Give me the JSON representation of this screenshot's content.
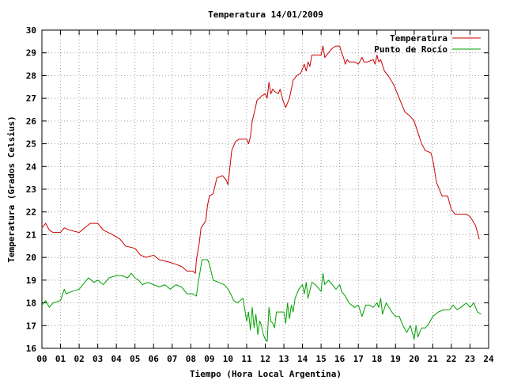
{
  "chart_data": {
    "type": "line",
    "title": "Temperatura 14/01/2009",
    "xlabel": "Tiempo (Hora Local Argentina)",
    "ylabel": "Temperatura (Grados Celsius)",
    "xlim": [
      0,
      24
    ],
    "ylim": [
      16,
      30
    ],
    "x_ticks": [
      "00",
      "01",
      "02",
      "03",
      "04",
      "05",
      "06",
      "07",
      "08",
      "09",
      "10",
      "11",
      "12",
      "13",
      "14",
      "15",
      "16",
      "17",
      "18",
      "19",
      "20",
      "21",
      "22",
      "23",
      "24"
    ],
    "y_ticks": [
      "16",
      "17",
      "18",
      "19",
      "20",
      "21",
      "22",
      "23",
      "24",
      "25",
      "26",
      "27",
      "28",
      "29",
      "30"
    ],
    "grid": true,
    "legend_position": "top-right",
    "series": [
      {
        "name": "Temperatura",
        "color": "#cc0000",
        "points": [
          [
            0.0,
            21.3
          ],
          [
            0.2,
            21.5
          ],
          [
            0.4,
            21.2
          ],
          [
            0.6,
            21.1
          ],
          [
            1.0,
            21.1
          ],
          [
            1.2,
            21.3
          ],
          [
            1.5,
            21.2
          ],
          [
            2.0,
            21.1
          ],
          [
            2.3,
            21.3
          ],
          [
            2.6,
            21.5
          ],
          [
            3.0,
            21.5
          ],
          [
            3.3,
            21.2
          ],
          [
            3.8,
            21.0
          ],
          [
            4.2,
            20.8
          ],
          [
            4.5,
            20.5
          ],
          [
            5.0,
            20.4
          ],
          [
            5.3,
            20.1
          ],
          [
            5.6,
            20.0
          ],
          [
            6.0,
            20.1
          ],
          [
            6.3,
            19.9
          ],
          [
            6.8,
            19.8
          ],
          [
            7.2,
            19.7
          ],
          [
            7.5,
            19.6
          ],
          [
            7.8,
            19.4
          ],
          [
            8.1,
            19.4
          ],
          [
            8.25,
            19.3
          ],
          [
            8.3,
            19.9
          ],
          [
            8.45,
            20.6
          ],
          [
            8.55,
            21.3
          ],
          [
            8.8,
            21.6
          ],
          [
            8.9,
            22.3
          ],
          [
            9.0,
            22.7
          ],
          [
            9.2,
            22.8
          ],
          [
            9.4,
            23.5
          ],
          [
            9.7,
            23.6
          ],
          [
            9.9,
            23.4
          ],
          [
            10.0,
            23.2
          ],
          [
            10.2,
            24.7
          ],
          [
            10.4,
            25.1
          ],
          [
            10.6,
            25.2
          ],
          [
            11.0,
            25.2
          ],
          [
            11.1,
            25.0
          ],
          [
            11.2,
            25.3
          ],
          [
            11.3,
            26.0
          ],
          [
            11.45,
            26.5
          ],
          [
            11.55,
            26.9
          ],
          [
            11.8,
            27.1
          ],
          [
            12.0,
            27.2
          ],
          [
            12.1,
            27.0
          ],
          [
            12.2,
            27.7
          ],
          [
            12.3,
            27.2
          ],
          [
            12.4,
            27.4
          ],
          [
            12.5,
            27.3
          ],
          [
            12.7,
            27.2
          ],
          [
            12.8,
            27.4
          ],
          [
            12.95,
            26.9
          ],
          [
            13.1,
            26.6
          ],
          [
            13.3,
            27.0
          ],
          [
            13.5,
            27.8
          ],
          [
            13.7,
            28.0
          ],
          [
            13.9,
            28.1
          ],
          [
            14.1,
            28.5
          ],
          [
            14.2,
            28.2
          ],
          [
            14.3,
            28.6
          ],
          [
            14.4,
            28.4
          ],
          [
            14.5,
            28.9
          ],
          [
            14.7,
            28.9
          ],
          [
            15.0,
            28.9
          ],
          [
            15.1,
            29.3
          ],
          [
            15.2,
            28.8
          ],
          [
            15.4,
            29.0
          ],
          [
            15.6,
            29.2
          ],
          [
            15.8,
            29.3
          ],
          [
            16.0,
            29.3
          ],
          [
            16.1,
            29.0
          ],
          [
            16.2,
            28.8
          ],
          [
            16.3,
            28.5
          ],
          [
            16.4,
            28.7
          ],
          [
            16.5,
            28.6
          ],
          [
            16.8,
            28.6
          ],
          [
            17.0,
            28.5
          ],
          [
            17.2,
            28.8
          ],
          [
            17.3,
            28.6
          ],
          [
            17.5,
            28.6
          ],
          [
            17.8,
            28.7
          ],
          [
            17.9,
            28.5
          ],
          [
            18.0,
            28.9
          ],
          [
            18.1,
            28.6
          ],
          [
            18.2,
            28.7
          ],
          [
            18.4,
            28.2
          ],
          [
            18.6,
            28.0
          ],
          [
            18.9,
            27.6
          ],
          [
            19.2,
            27.0
          ],
          [
            19.5,
            26.4
          ],
          [
            19.8,
            26.2
          ],
          [
            20.0,
            26.0
          ],
          [
            20.2,
            25.5
          ],
          [
            20.4,
            25.0
          ],
          [
            20.6,
            24.7
          ],
          [
            20.9,
            24.6
          ],
          [
            21.0,
            24.3
          ],
          [
            21.2,
            23.3
          ],
          [
            21.5,
            22.7
          ],
          [
            21.8,
            22.7
          ],
          [
            22.0,
            22.1
          ],
          [
            22.2,
            21.9
          ],
          [
            22.5,
            21.9
          ],
          [
            22.8,
            21.9
          ],
          [
            23.0,
            21.8
          ],
          [
            23.3,
            21.4
          ],
          [
            23.5,
            20.8
          ]
        ]
      },
      {
        "name": "Punto de Rocío",
        "color": "#00a000",
        "points": [
          [
            0.0,
            17.9
          ],
          [
            0.2,
            18.1
          ],
          [
            0.4,
            17.8
          ],
          [
            0.6,
            18.0
          ],
          [
            1.0,
            18.1
          ],
          [
            1.2,
            18.6
          ],
          [
            1.3,
            18.4
          ],
          [
            1.6,
            18.5
          ],
          [
            2.0,
            18.6
          ],
          [
            2.3,
            18.9
          ],
          [
            2.5,
            19.1
          ],
          [
            2.8,
            18.9
          ],
          [
            3.0,
            19.0
          ],
          [
            3.3,
            18.8
          ],
          [
            3.6,
            19.1
          ],
          [
            4.0,
            19.2
          ],
          [
            4.3,
            19.2
          ],
          [
            4.6,
            19.1
          ],
          [
            4.8,
            19.3
          ],
          [
            5.0,
            19.1
          ],
          [
            5.2,
            19.0
          ],
          [
            5.4,
            18.8
          ],
          [
            5.7,
            18.9
          ],
          [
            6.0,
            18.8
          ],
          [
            6.3,
            18.7
          ],
          [
            6.6,
            18.8
          ],
          [
            6.9,
            18.6
          ],
          [
            7.2,
            18.8
          ],
          [
            7.5,
            18.7
          ],
          [
            7.8,
            18.4
          ],
          [
            8.1,
            18.4
          ],
          [
            8.3,
            18.3
          ],
          [
            8.4,
            18.9
          ],
          [
            8.6,
            19.9
          ],
          [
            8.9,
            19.9
          ],
          [
            9.0,
            19.7
          ],
          [
            9.2,
            19.0
          ],
          [
            9.5,
            18.9
          ],
          [
            9.8,
            18.8
          ],
          [
            10.0,
            18.6
          ],
          [
            10.2,
            18.3
          ],
          [
            10.3,
            18.1
          ],
          [
            10.5,
            18.0
          ],
          [
            10.8,
            18.2
          ],
          [
            11.0,
            17.2
          ],
          [
            11.1,
            17.6
          ],
          [
            11.2,
            16.8
          ],
          [
            11.3,
            17.8
          ],
          [
            11.4,
            16.9
          ],
          [
            11.5,
            17.5
          ],
          [
            11.6,
            16.6
          ],
          [
            11.7,
            17.2
          ],
          [
            11.8,
            17.0
          ],
          [
            11.9,
            16.6
          ],
          [
            12.0,
            16.4
          ],
          [
            12.1,
            16.3
          ],
          [
            12.2,
            17.8
          ],
          [
            12.3,
            17.2
          ],
          [
            12.4,
            17.1
          ],
          [
            12.5,
            16.9
          ],
          [
            12.6,
            17.6
          ],
          [
            13.0,
            17.6
          ],
          [
            13.1,
            17.1
          ],
          [
            13.2,
            18.0
          ],
          [
            13.3,
            17.3
          ],
          [
            13.4,
            17.9
          ],
          [
            13.5,
            17.6
          ],
          [
            13.6,
            18.2
          ],
          [
            13.8,
            18.6
          ],
          [
            14.0,
            18.8
          ],
          [
            14.1,
            18.4
          ],
          [
            14.2,
            18.9
          ],
          [
            14.3,
            18.2
          ],
          [
            14.5,
            18.9
          ],
          [
            14.7,
            18.8
          ],
          [
            15.0,
            18.5
          ],
          [
            15.1,
            19.3
          ],
          [
            15.2,
            18.8
          ],
          [
            15.4,
            19.0
          ],
          [
            15.6,
            18.8
          ],
          [
            15.8,
            18.6
          ],
          [
            16.0,
            18.8
          ],
          [
            16.1,
            18.5
          ],
          [
            16.3,
            18.3
          ],
          [
            16.5,
            18.0
          ],
          [
            16.8,
            17.8
          ],
          [
            17.0,
            17.9
          ],
          [
            17.2,
            17.4
          ],
          [
            17.4,
            17.9
          ],
          [
            17.6,
            17.9
          ],
          [
            17.8,
            17.8
          ],
          [
            18.0,
            18.0
          ],
          [
            18.1,
            17.8
          ],
          [
            18.2,
            18.2
          ],
          [
            18.3,
            17.5
          ],
          [
            18.5,
            18.0
          ],
          [
            18.8,
            17.6
          ],
          [
            19.0,
            17.4
          ],
          [
            19.2,
            17.4
          ],
          [
            19.4,
            17.0
          ],
          [
            19.6,
            16.7
          ],
          [
            19.8,
            17.0
          ],
          [
            20.0,
            16.4
          ],
          [
            20.1,
            17.0
          ],
          [
            20.2,
            16.5
          ],
          [
            20.4,
            16.9
          ],
          [
            20.6,
            16.9
          ],
          [
            20.8,
            17.1
          ],
          [
            21.0,
            17.4
          ],
          [
            21.3,
            17.6
          ],
          [
            21.6,
            17.7
          ],
          [
            21.9,
            17.7
          ],
          [
            22.1,
            17.9
          ],
          [
            22.3,
            17.7
          ],
          [
            22.5,
            17.8
          ],
          [
            22.8,
            18.0
          ],
          [
            23.0,
            17.8
          ],
          [
            23.2,
            18.0
          ],
          [
            23.4,
            17.6
          ],
          [
            23.6,
            17.5
          ]
        ]
      }
    ]
  }
}
